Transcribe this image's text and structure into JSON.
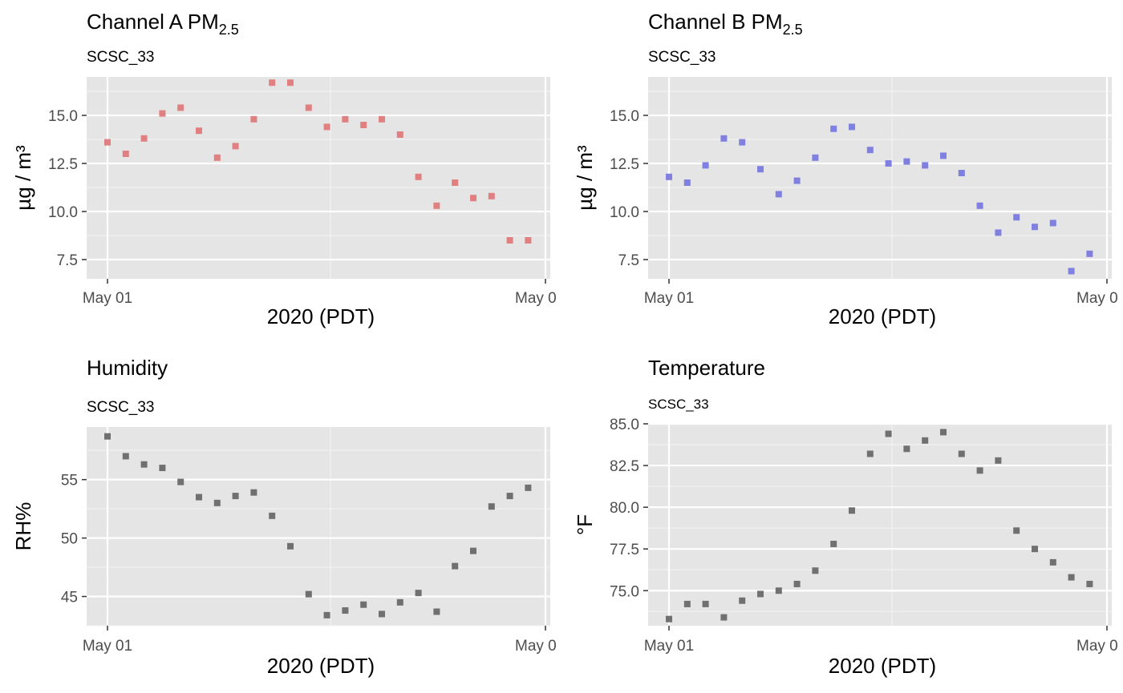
{
  "chart_data": [
    {
      "type": "scatter",
      "title": "Channel A PM",
      "title_sub": "2.5",
      "subtitle": "SCSC_33",
      "xlabel": "2020 (PDT)",
      "ylabel": "µg / m³",
      "ylim": [
        6.5,
        17.0
      ],
      "yticks": [
        "7.5",
        "10.0",
        "12.5",
        "15.0"
      ],
      "xticks": [
        "May 01",
        "May 0"
      ],
      "color": "#e08080",
      "series": [
        {
          "values": [
            13.6,
            13.0,
            13.8,
            15.1,
            15.4,
            14.2,
            12.8,
            13.4,
            14.8,
            16.7,
            16.7,
            15.4,
            14.4,
            14.8,
            14.5,
            14.8,
            14.0,
            11.8,
            10.3,
            11.5,
            10.7,
            10.8,
            8.5,
            8.5
          ]
        }
      ]
    },
    {
      "type": "scatter",
      "title": "Channel B PM",
      "title_sub": "2.5",
      "subtitle": "SCSC_33",
      "xlabel": "2020 (PDT)",
      "ylabel": "µg / m³",
      "ylim": [
        6.5,
        17.0
      ],
      "yticks": [
        "7.5",
        "10.0",
        "12.5",
        "15.0"
      ],
      "xticks": [
        "May 01",
        "May 0"
      ],
      "color": "#8080e0",
      "series": [
        {
          "values": [
            11.8,
            11.5,
            12.4,
            13.8,
            13.6,
            12.2,
            10.9,
            11.6,
            12.8,
            14.3,
            14.4,
            13.2,
            12.5,
            12.6,
            12.4,
            12.9,
            12.0,
            10.3,
            8.9,
            9.7,
            9.2,
            9.4,
            6.9,
            7.8
          ]
        }
      ]
    },
    {
      "type": "scatter",
      "title": "Humidity",
      "subtitle": "SCSC_33",
      "xlabel": "2020 (PDT)",
      "ylabel": "RH%",
      "ylim": [
        42.5,
        59.5
      ],
      "yticks": [
        "45",
        "50",
        "55"
      ],
      "xticks": [
        "May 01",
        "May 0"
      ],
      "color": "#707070",
      "series": [
        {
          "values": [
            58.7,
            57.0,
            56.3,
            56.0,
            54.8,
            53.5,
            53.0,
            53.6,
            53.9,
            51.9,
            49.3,
            45.2,
            43.4,
            43.8,
            44.3,
            43.5,
            44.5,
            45.3,
            43.7,
            47.6,
            48.9,
            52.7,
            53.6,
            54.3
          ]
        }
      ]
    },
    {
      "type": "scatter",
      "title": "Temperature",
      "subtitle": "SCSC_33",
      "xlabel": "2020 (PDT)",
      "ylabel": "°F",
      "ylim": [
        72.9,
        85.0
      ],
      "yticks": [
        "75.0",
        "77.5",
        "80.0",
        "82.5",
        "85.0"
      ],
      "xticks": [
        "May 01",
        "May 0"
      ],
      "color": "#707070",
      "series": [
        {
          "values": [
            73.3,
            74.2,
            74.2,
            73.4,
            74.4,
            74.8,
            75.0,
            75.4,
            76.2,
            77.8,
            79.8,
            83.2,
            84.4,
            83.5,
            84.0,
            84.5,
            83.2,
            82.2,
            82.8,
            78.6,
            77.5,
            76.7,
            75.8,
            75.4
          ]
        }
      ]
    }
  ]
}
